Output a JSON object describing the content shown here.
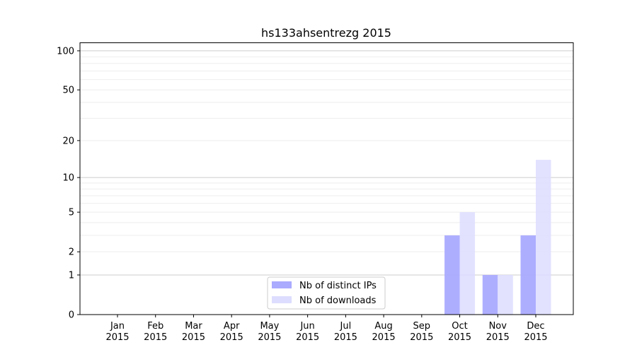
{
  "chart_data": {
    "type": "bar",
    "title": "hs133ahsentrezg 2015",
    "xlabel": "",
    "ylabel": "",
    "categories": [
      "Jan\n2015",
      "Feb\n2015",
      "Mar\n2015",
      "Apr\n2015",
      "May\n2015",
      "Jun\n2015",
      "Jul\n2015",
      "Aug\n2015",
      "Sep\n2015",
      "Oct\n2015",
      "Nov\n2015",
      "Dec\n2015"
    ],
    "series": [
      {
        "name": "Nb of distinct IPs",
        "color": "#aaaaff",
        "values": [
          0,
          0,
          0,
          0,
          0,
          0,
          0,
          0,
          0,
          3,
          1,
          3
        ]
      },
      {
        "name": "Nb of downloads",
        "color": "#ddddff",
        "values": [
          0,
          0,
          0,
          0,
          0,
          0,
          0,
          0,
          0,
          5,
          1,
          14
        ]
      }
    ],
    "yscale": "log(1+y)",
    "ylim": [
      0,
      116
    ],
    "yticks": [
      0,
      1,
      2,
      5,
      10,
      20,
      50,
      100
    ],
    "grid": true,
    "legend": "bottom-center"
  }
}
